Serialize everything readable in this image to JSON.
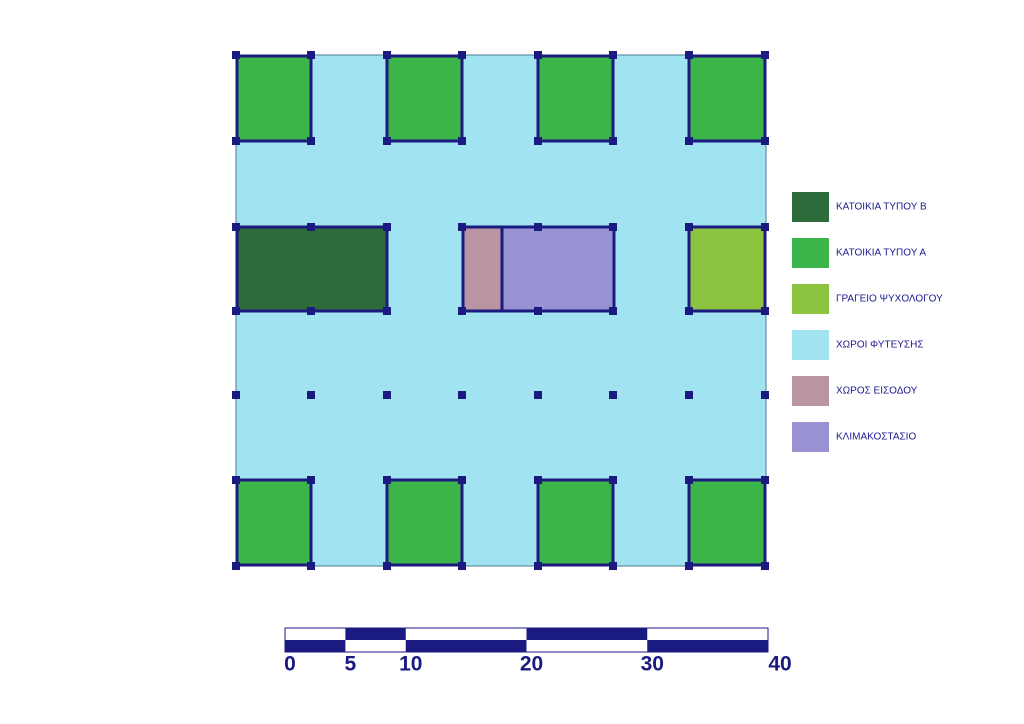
{
  "legend": {
    "items": [
      {
        "label": "ΚΑΤΟΙΚΙΑ ΤΥΠΟΥ Β",
        "color": "#2e6b3a"
      },
      {
        "label": "ΚΑΤΟΙΚΙΑ ΤΥΠΟΥ Α",
        "color": "#3bb44a"
      },
      {
        "label": "ΓΡΑΓΕΙΟ ΨΥΧΟΛΟΓΟΥ",
        "color": "#8cc43f"
      },
      {
        "label": "ΧΩΡΟΙ ΦΥΤΕΥΣΗΣ",
        "color": "#a1e3f0"
      },
      {
        "label": "ΧΩΡΟΣ ΕΙΣΟΔΟΥ",
        "color": "#b994a3"
      },
      {
        "label": "ΚΛΙΜΑΚΟΣΤΑΣΙΟ",
        "color": "#9891d2"
      }
    ]
  },
  "scale_bar": {
    "ticks": [
      0,
      5,
      10,
      20,
      30,
      40
    ]
  }
}
